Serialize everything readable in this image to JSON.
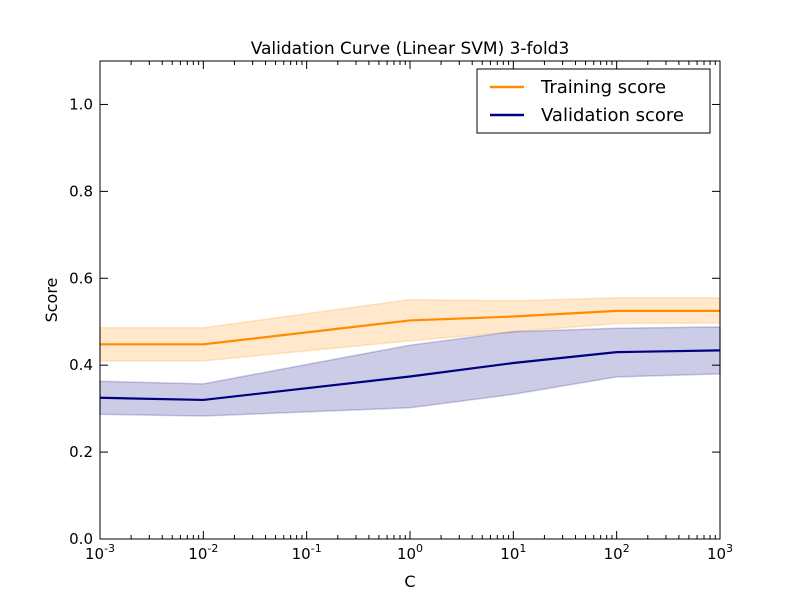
{
  "chart_data": {
    "type": "line",
    "title": "Validation Curve (Linear SVM) 3-fold3",
    "xlabel": "C",
    "ylabel": "Score",
    "xscale": "log",
    "xlim": [
      0.001,
      1000
    ],
    "ylim": [
      0.0,
      1.1
    ],
    "grid": false,
    "legend_position": "top-right",
    "x": [
      0.001,
      0.01,
      1,
      10,
      100,
      1000
    ],
    "x_tick_labels": [
      {
        "base": "10",
        "exp": "-3"
      },
      {
        "base": "10",
        "exp": "-2"
      },
      {
        "base": "10",
        "exp": "-1"
      },
      {
        "base": "10",
        "exp": "0"
      },
      {
        "base": "10",
        "exp": "1"
      },
      {
        "base": "10",
        "exp": "2"
      },
      {
        "base": "10",
        "exp": "3"
      }
    ],
    "y_tick_labels": [
      "0.0",
      "0.2",
      "0.4",
      "0.6",
      "0.8",
      "1.0"
    ],
    "series": [
      {
        "name": "Training score",
        "color": "#ff8c00",
        "values": [
          0.448,
          0.448,
          0.503,
          0.512,
          0.525,
          0.525
        ],
        "band_lower": [
          0.41,
          0.41,
          0.456,
          0.477,
          0.496,
          0.497
        ],
        "band_upper": [
          0.486,
          0.486,
          0.551,
          0.548,
          0.555,
          0.555
        ]
      },
      {
        "name": "Validation score",
        "color": "#000080",
        "values": [
          0.325,
          0.32,
          0.374,
          0.405,
          0.43,
          0.434
        ],
        "band_lower": [
          0.287,
          0.283,
          0.302,
          0.333,
          0.373,
          0.38
        ],
        "band_upper": [
          0.363,
          0.357,
          0.446,
          0.477,
          0.485,
          0.488
        ]
      }
    ]
  }
}
